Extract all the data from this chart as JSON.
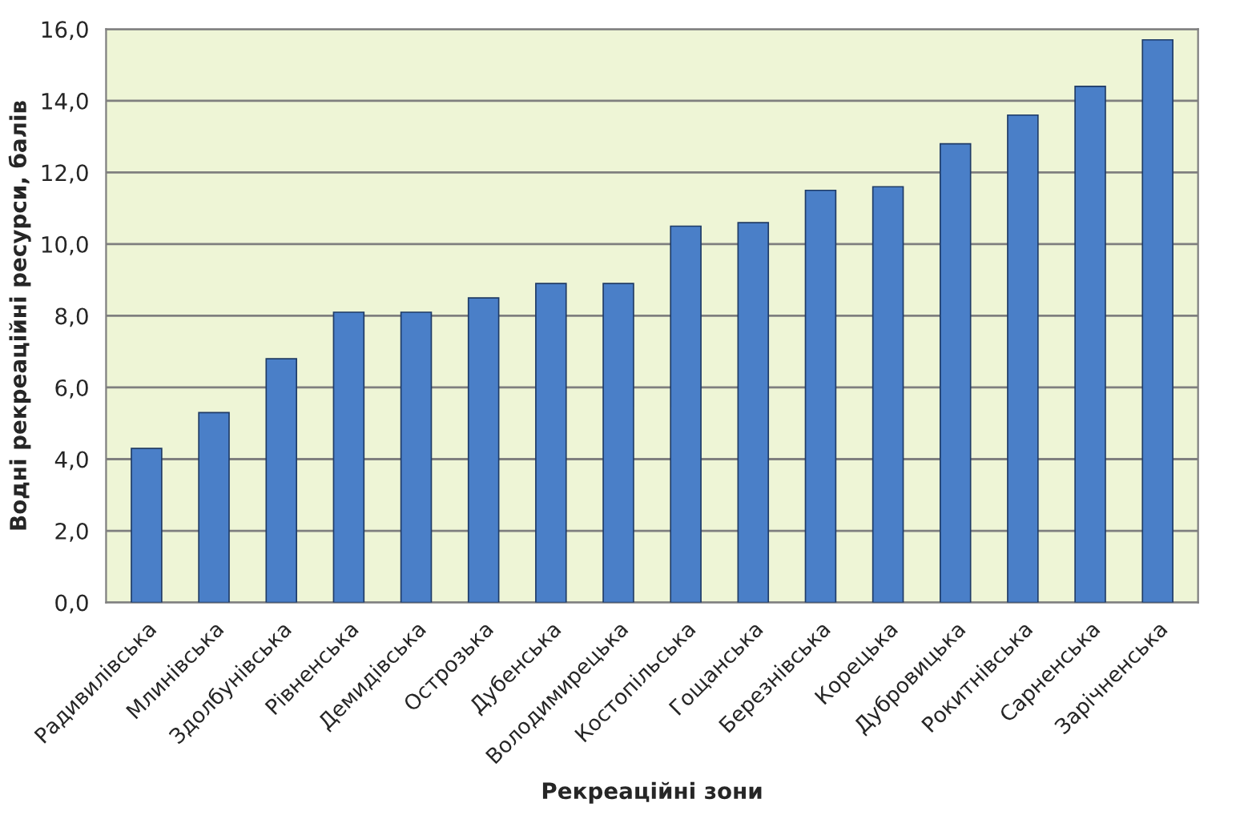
{
  "chart_data": {
    "type": "bar",
    "xlabel": "Рекреаційні зони",
    "ylabel": "Водні рекреаційні ресурси, балів",
    "categories": [
      "Радивилівська",
      "Млинівська",
      "Здолбунівська",
      "Рівненська",
      "Демидівська",
      "Острозька",
      "Дубенська",
      "Володимирецька",
      "Костопільська",
      "Гощанська",
      "Березнівська",
      "Корецька",
      "Дубровицька",
      "Рокитнівська",
      "Сарненська",
      "Зарічненська"
    ],
    "values": [
      4.3,
      5.3,
      6.8,
      8.1,
      8.1,
      8.5,
      8.9,
      8.9,
      10.5,
      10.6,
      11.5,
      11.6,
      12.8,
      13.6,
      14.4,
      15.7
    ],
    "color": "#4a7fc8",
    "ylim": [
      0,
      16
    ],
    "yticks": [
      {
        "value": 0,
        "label": "0,0"
      },
      {
        "value": 2,
        "label": "2,0"
      },
      {
        "value": 4,
        "label": "4,0"
      },
      {
        "value": 6,
        "label": "6,0"
      },
      {
        "value": 8,
        "label": "8,0"
      },
      {
        "value": 10,
        "label": "10,0"
      },
      {
        "value": 12,
        "label": "12,0"
      },
      {
        "value": 14,
        "label": "14,0"
      },
      {
        "value": 16,
        "label": "16,0"
      }
    ],
    "grid": "y",
    "legend": false
  }
}
